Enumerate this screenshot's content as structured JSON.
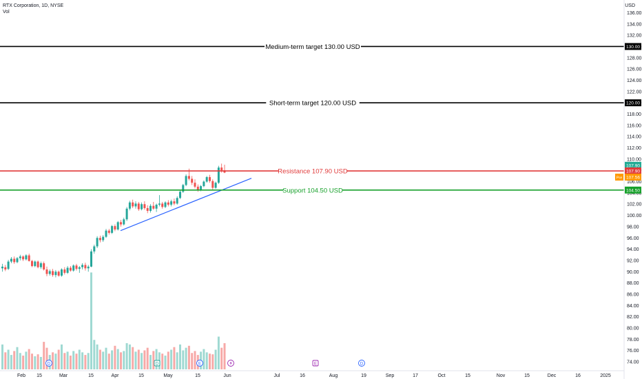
{
  "header": {
    "symbol_line": "RTX Corporation, 1D, NYSE",
    "indicator": "Vol"
  },
  "axis": {
    "currency": "USD"
  },
  "chart_data": {
    "type": "candlestick",
    "y_range": [
      73,
      139
    ],
    "y_ticks": [
      74,
      76,
      78,
      80,
      82,
      84,
      86,
      88,
      90,
      92,
      94,
      96,
      98,
      100,
      102,
      104,
      106,
      108,
      110,
      112,
      114,
      116,
      118,
      120,
      122,
      124,
      126,
      128,
      130,
      132,
      134,
      136,
      138
    ],
    "x_labels": [
      "Feb",
      "15",
      "Mar",
      "15",
      "Apr",
      "15",
      "May",
      "15",
      "Jun",
      "Jul",
      "16",
      "Aug",
      "19",
      "Sep",
      "17",
      "Oct",
      "15",
      "Nov",
      "15",
      "Dec",
      "16",
      "2025"
    ],
    "horizontal_levels": [
      {
        "label": "Medium-term target 130.00 USD",
        "value": 130.0,
        "color": "#000000",
        "badge": "130.00"
      },
      {
        "label": "Short-term target 120.00 USD",
        "value": 120.0,
        "color": "#000000",
        "badge": "120.00"
      },
      {
        "label": "Resistance 107.90 USD",
        "value": 107.9,
        "color": "#e03a3a",
        "badge": "107.90"
      },
      {
        "label": "Support 104.50 USD",
        "value": 104.5,
        "color": "#16a02a",
        "badge": "104.50"
      }
    ],
    "price_badges": [
      {
        "label": "107.90",
        "value": 108.9,
        "color": "#22ab94"
      },
      {
        "label": "107.90",
        "value": 107.9,
        "color": "#e03a3a"
      },
      {
        "label": "Pre",
        "price": "107.56",
        "value": 106.8,
        "color": "#ff9800"
      }
    ],
    "trendline": {
      "from": [
        "Apr 3",
        97.3
      ],
      "to": [
        "Jun 6",
        106.6
      ],
      "color": "#2962ff"
    },
    "event_markers": [
      "D",
      "D",
      "E",
      "D",
      "E",
      "D"
    ],
    "candles": [
      {
        "o": 90.6,
        "h": 91.4,
        "l": 90.0,
        "c": 90.9,
        "v": 38
      },
      {
        "o": 90.8,
        "h": 91.2,
        "l": 90.1,
        "c": 90.4,
        "v": 26
      },
      {
        "o": 90.5,
        "h": 92.1,
        "l": 90.3,
        "c": 91.8,
        "v": 30
      },
      {
        "o": 91.8,
        "h": 92.6,
        "l": 91.5,
        "c": 92.3,
        "v": 22
      },
      {
        "o": 92.3,
        "h": 92.7,
        "l": 91.4,
        "c": 91.7,
        "v": 28
      },
      {
        "o": 91.7,
        "h": 92.6,
        "l": 91.5,
        "c": 92.4,
        "v": 34
      },
      {
        "o": 92.4,
        "h": 93.0,
        "l": 92.0,
        "c": 92.7,
        "v": 25
      },
      {
        "o": 92.7,
        "h": 92.9,
        "l": 91.9,
        "c": 92.2,
        "v": 21
      },
      {
        "o": 92.2,
        "h": 93.1,
        "l": 92.0,
        "c": 92.9,
        "v": 27
      },
      {
        "o": 92.9,
        "h": 93.2,
        "l": 91.8,
        "c": 91.9,
        "v": 31
      },
      {
        "o": 91.9,
        "h": 92.1,
        "l": 90.8,
        "c": 91.0,
        "v": 24
      },
      {
        "o": 91.0,
        "h": 92.0,
        "l": 90.8,
        "c": 91.8,
        "v": 20
      },
      {
        "o": 91.8,
        "h": 92.0,
        "l": 90.6,
        "c": 90.8,
        "v": 23
      },
      {
        "o": 90.8,
        "h": 91.8,
        "l": 90.5,
        "c": 91.5,
        "v": 19
      },
      {
        "o": 91.5,
        "h": 91.8,
        "l": 90.2,
        "c": 90.4,
        "v": 42
      },
      {
        "o": 90.4,
        "h": 90.9,
        "l": 89.2,
        "c": 89.6,
        "v": 33
      },
      {
        "o": 89.6,
        "h": 90.4,
        "l": 89.3,
        "c": 90.1,
        "v": 22
      },
      {
        "o": 90.1,
        "h": 90.5,
        "l": 89.1,
        "c": 89.4,
        "v": 26
      },
      {
        "o": 89.4,
        "h": 90.3,
        "l": 89.0,
        "c": 90.0,
        "v": 24
      },
      {
        "o": 90.0,
        "h": 90.2,
        "l": 89.1,
        "c": 89.3,
        "v": 30
      },
      {
        "o": 89.3,
        "h": 90.6,
        "l": 89.1,
        "c": 90.4,
        "v": 38
      },
      {
        "o": 90.4,
        "h": 90.8,
        "l": 89.5,
        "c": 89.8,
        "v": 25
      },
      {
        "o": 89.8,
        "h": 91.0,
        "l": 89.6,
        "c": 90.7,
        "v": 27
      },
      {
        "o": 90.7,
        "h": 91.0,
        "l": 90.0,
        "c": 90.2,
        "v": 21
      },
      {
        "o": 90.2,
        "h": 91.3,
        "l": 90.0,
        "c": 91.1,
        "v": 28
      },
      {
        "o": 91.1,
        "h": 91.4,
        "l": 90.2,
        "c": 90.5,
        "v": 24
      },
      {
        "o": 90.5,
        "h": 91.0,
        "l": 89.8,
        "c": 90.8,
        "v": 30
      },
      {
        "o": 90.8,
        "h": 91.5,
        "l": 90.4,
        "c": 91.2,
        "v": 26
      },
      {
        "o": 91.2,
        "h": 91.6,
        "l": 90.2,
        "c": 90.6,
        "v": 22
      },
      {
        "o": 90.6,
        "h": 91.2,
        "l": 90.0,
        "c": 90.9,
        "v": 25
      },
      {
        "o": 90.9,
        "h": 94.0,
        "l": 90.8,
        "c": 93.6,
        "v": 148
      },
      {
        "o": 93.6,
        "h": 94.8,
        "l": 93.2,
        "c": 94.5,
        "v": 45
      },
      {
        "o": 94.5,
        "h": 96.3,
        "l": 94.2,
        "c": 96.0,
        "v": 38
      },
      {
        "o": 96.0,
        "h": 96.4,
        "l": 95.2,
        "c": 95.6,
        "v": 30
      },
      {
        "o": 95.6,
        "h": 96.5,
        "l": 95.3,
        "c": 96.2,
        "v": 27
      },
      {
        "o": 96.2,
        "h": 97.6,
        "l": 96.0,
        "c": 97.3,
        "v": 33
      },
      {
        "o": 97.3,
        "h": 97.6,
        "l": 96.6,
        "c": 96.9,
        "v": 24
      },
      {
        "o": 96.9,
        "h": 98.3,
        "l": 96.7,
        "c": 98.1,
        "v": 29
      },
      {
        "o": 98.1,
        "h": 98.4,
        "l": 97.2,
        "c": 97.5,
        "v": 36
      },
      {
        "o": 97.5,
        "h": 99.0,
        "l": 97.3,
        "c": 98.8,
        "v": 31
      },
      {
        "o": 98.8,
        "h": 99.2,
        "l": 98.0,
        "c": 98.4,
        "v": 26
      },
      {
        "o": 98.4,
        "h": 99.6,
        "l": 98.2,
        "c": 99.3,
        "v": 28
      },
      {
        "o": 99.3,
        "h": 101.5,
        "l": 99.0,
        "c": 101.2,
        "v": 40
      },
      {
        "o": 101.2,
        "h": 102.6,
        "l": 100.9,
        "c": 102.3,
        "v": 38
      },
      {
        "o": 102.3,
        "h": 102.8,
        "l": 101.3,
        "c": 101.6,
        "v": 34
      },
      {
        "o": 101.6,
        "h": 102.5,
        "l": 101.2,
        "c": 102.1,
        "v": 27
      },
      {
        "o": 102.1,
        "h": 102.4,
        "l": 100.8,
        "c": 101.1,
        "v": 30
      },
      {
        "o": 101.1,
        "h": 102.3,
        "l": 100.9,
        "c": 102.0,
        "v": 25
      },
      {
        "o": 102.0,
        "h": 102.5,
        "l": 101.0,
        "c": 101.3,
        "v": 29
      },
      {
        "o": 101.3,
        "h": 101.8,
        "l": 100.4,
        "c": 100.8,
        "v": 33
      },
      {
        "o": 100.8,
        "h": 102.0,
        "l": 100.5,
        "c": 101.7,
        "v": 22
      },
      {
        "o": 101.7,
        "h": 102.4,
        "l": 101.0,
        "c": 101.2,
        "v": 28
      },
      {
        "o": 101.2,
        "h": 102.1,
        "l": 100.6,
        "c": 101.9,
        "v": 31
      },
      {
        "o": 101.9,
        "h": 103.6,
        "l": 101.6,
        "c": 102.1,
        "v": 26
      },
      {
        "o": 102.1,
        "h": 102.4,
        "l": 101.2,
        "c": 101.5,
        "v": 24
      },
      {
        "o": 101.5,
        "h": 102.5,
        "l": 101.3,
        "c": 102.3,
        "v": 21
      },
      {
        "o": 102.3,
        "h": 102.7,
        "l": 101.6,
        "c": 101.9,
        "v": 27
      },
      {
        "o": 101.9,
        "h": 102.8,
        "l": 101.6,
        "c": 102.5,
        "v": 30
      },
      {
        "o": 102.5,
        "h": 103.0,
        "l": 101.8,
        "c": 102.1,
        "v": 34
      },
      {
        "o": 102.1,
        "h": 103.4,
        "l": 101.9,
        "c": 103.1,
        "v": 26
      },
      {
        "o": 103.1,
        "h": 104.5,
        "l": 102.9,
        "c": 104.2,
        "v": 38
      },
      {
        "o": 104.2,
        "h": 105.6,
        "l": 104.0,
        "c": 105.4,
        "v": 29
      },
      {
        "o": 105.4,
        "h": 107.3,
        "l": 105.2,
        "c": 107.0,
        "v": 33
      },
      {
        "o": 107.0,
        "h": 108.3,
        "l": 106.2,
        "c": 106.5,
        "v": 36
      },
      {
        "o": 106.5,
        "h": 107.0,
        "l": 105.4,
        "c": 105.8,
        "v": 25
      },
      {
        "o": 105.8,
        "h": 106.4,
        "l": 104.8,
        "c": 105.1,
        "v": 28
      },
      {
        "o": 105.1,
        "h": 105.5,
        "l": 104.2,
        "c": 104.5,
        "v": 22
      },
      {
        "o": 104.5,
        "h": 105.4,
        "l": 104.3,
        "c": 105.2,
        "v": 27
      },
      {
        "o": 105.2,
        "h": 106.2,
        "l": 105.0,
        "c": 106.0,
        "v": 31
      },
      {
        "o": 106.0,
        "h": 107.0,
        "l": 105.8,
        "c": 106.8,
        "v": 26
      },
      {
        "o": 106.8,
        "h": 107.2,
        "l": 105.8,
        "c": 106.1,
        "v": 24
      },
      {
        "o": 106.1,
        "h": 106.4,
        "l": 104.6,
        "c": 104.9,
        "v": 23
      },
      {
        "o": 104.9,
        "h": 106.0,
        "l": 104.7,
        "c": 105.8,
        "v": 30
      },
      {
        "o": 105.8,
        "h": 108.8,
        "l": 105.6,
        "c": 108.5,
        "v": 50
      },
      {
        "o": 108.5,
        "h": 109.2,
        "l": 107.6,
        "c": 108.0,
        "v": 33
      },
      {
        "o": 108.0,
        "h": 109.0,
        "l": 107.5,
        "c": 107.6,
        "v": 40
      }
    ]
  }
}
